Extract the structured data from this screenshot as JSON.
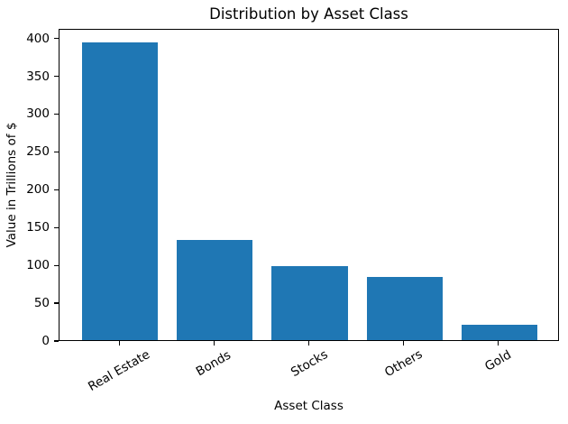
{
  "chart_data": {
    "type": "bar",
    "title": "Distribution by Asset Class",
    "xlabel": "Asset Class",
    "ylabel": "Value in Trillions of $",
    "categories": [
      "Real Estate",
      "Bonds",
      "Stocks",
      "Others",
      "Gold"
    ],
    "values": [
      393,
      132,
      98,
      84,
      20
    ],
    "yticks": [
      0,
      50,
      100,
      150,
      200,
      250,
      300,
      350,
      400
    ],
    "ylim": [
      0,
      412.65
    ],
    "bar_color": "#1f77b4",
    "spine_color": "#000000",
    "xtick_rotation_deg": 30,
    "grid": false,
    "legend_position": "none"
  }
}
